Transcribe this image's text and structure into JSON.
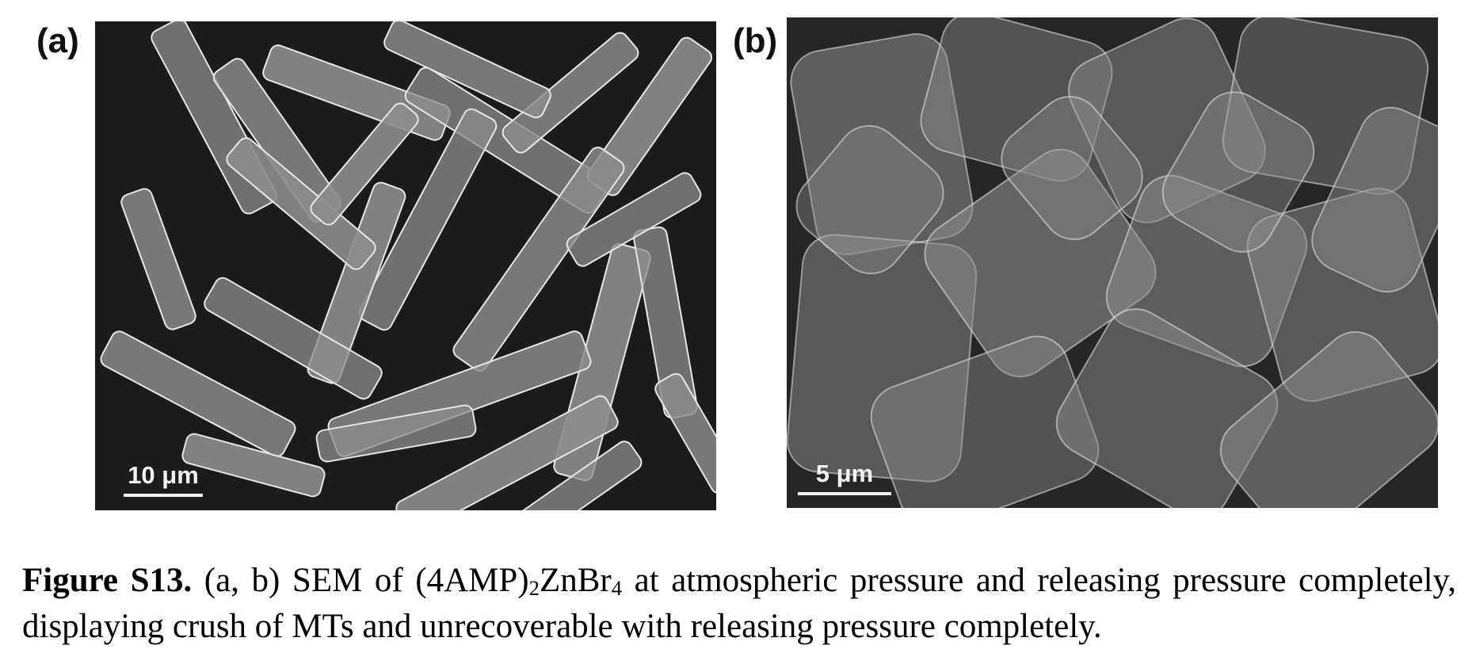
{
  "figure": {
    "panels": [
      {
        "id": "a",
        "label": "(a)",
        "image": "SEM micrograph of elongated rod-like crystals on dark background",
        "scale_bar": "10 μm"
      },
      {
        "id": "b",
        "label": "(b)",
        "image": "SEM micrograph of crushed, densely packed crystal fragments",
        "scale_bar": "5 μm"
      }
    ],
    "caption": {
      "label": "Figure S13.",
      "text_before_sub1": " (a, b) SEM of (4AMP)",
      "sub1": "2",
      "text_between": "ZnBr",
      "sub2": "4",
      "text_after": " at atmospheric pressure and releasing pressure completely, displaying crush of MTs and unrecoverable with releasing pressure completely."
    }
  },
  "colors": {
    "sem_background_a": "#1c1c1c",
    "sem_background_b": "#262626",
    "crystal_fill": "#8c8c8c",
    "crystal_edge": "#e6e6e6",
    "scale_bar": "#f2f2f2"
  }
}
